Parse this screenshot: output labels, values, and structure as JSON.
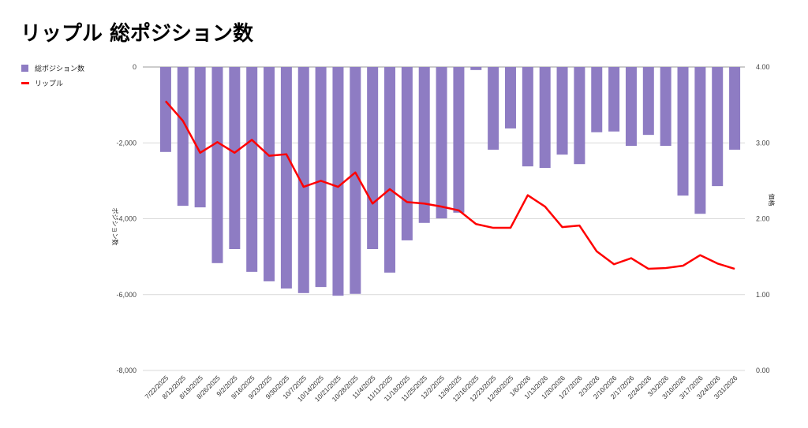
{
  "chart_data": {
    "type": "bar",
    "title": "リップル 総ポジション数",
    "xlabel": "",
    "ylabel": "ポジション数",
    "ylabel_right": "価格",
    "ylim": [
      -8000,
      0
    ],
    "ylim_right": [
      0,
      4
    ],
    "yticks": [
      "0",
      "-2,000",
      "-4,000",
      "-6,000",
      "-8,000"
    ],
    "yticks_right": [
      "4.00",
      "3.00",
      "2.00",
      "1.00",
      "0.00"
    ],
    "grid": true,
    "legend_position": "top-left",
    "categories": [
      "7/22/2025",
      "8/12/2025",
      "8/19/2025",
      "8/26/2025",
      "9/2/2025",
      "9/16/2025",
      "9/23/2025",
      "9/30/2025",
      "10/7/2025",
      "10/14/2025",
      "10/21/2025",
      "10/28/2025",
      "11/4/2025",
      "11/11/2025",
      "11/18/2025",
      "11/25/2025",
      "12/2/2025",
      "12/9/2025",
      "12/16/2025",
      "12/23/2025",
      "12/30/2025",
      "1/6/2026",
      "1/13/2026",
      "1/20/2026",
      "1/27/2026",
      "2/3/2026",
      "2/10/2026",
      "2/17/2026",
      "2/24/2026",
      "3/3/2026",
      "3/10/2026",
      "3/17/2026",
      "3/24/2026",
      "3/31/2026"
    ],
    "series": [
      {
        "name": "総ポジション数",
        "type": "bar",
        "axis": "left",
        "color": "#8e7cc3",
        "values": [
          -2240,
          -3660,
          -3700,
          -5170,
          -4800,
          -5400,
          -5650,
          -5840,
          -5960,
          -5800,
          -6030,
          -5980,
          -4800,
          -5420,
          -4570,
          -4110,
          -3990,
          -3840,
          -80,
          -2180,
          -1620,
          -2620,
          -2660,
          -2310,
          -2560,
          -1720,
          -1700,
          -2080,
          -1790,
          -2080,
          -3390,
          -3870,
          -3140,
          -2180
        ]
      },
      {
        "name": "リップル",
        "type": "line",
        "axis": "right",
        "color": "#ff0000",
        "values": [
          3.55,
          3.29,
          2.87,
          3.01,
          2.87,
          3.04,
          2.83,
          2.85,
          2.42,
          2.5,
          2.42,
          2.61,
          2.2,
          2.39,
          2.22,
          2.2,
          2.16,
          2.11,
          1.93,
          1.88,
          1.88,
          2.31,
          2.16,
          1.89,
          1.91,
          1.57,
          1.4,
          1.48,
          1.34,
          1.35,
          1.38,
          1.52,
          1.41,
          1.34
        ]
      }
    ]
  }
}
